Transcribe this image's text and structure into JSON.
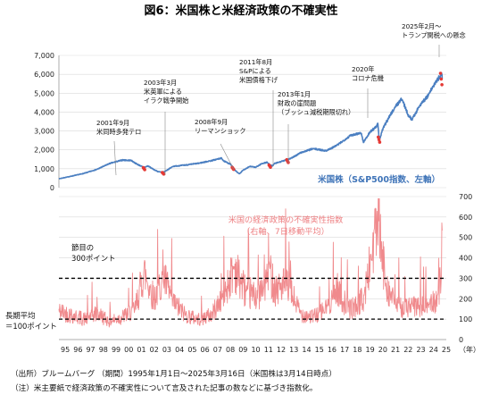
{
  "title": "図6：米国株と米経済政策の不確実性",
  "chart_data": [
    {
      "type": "line",
      "series": [
        {
          "name": "米国株（S&P500指数、左軸）",
          "color": "#4b7fc1",
          "x": [
            1995.0,
            1996.0,
            1997.0,
            1998.0,
            1999.0,
            2000.0,
            2000.7,
            2001.0,
            2001.7,
            2002.0,
            2002.5,
            2002.8,
            2003.2,
            2004.0,
            2005.0,
            2006.0,
            2007.0,
            2007.8,
            2008.0,
            2008.5,
            2008.9,
            2009.2,
            2009.5,
            2010.0,
            2010.5,
            2011.0,
            2011.4,
            2011.6,
            2011.8,
            2012.0,
            2012.5,
            2013.0,
            2013.5,
            2014.0,
            2015.0,
            2015.6,
            2016.0,
            2016.5,
            2017.0,
            2018.0,
            2018.8,
            2018.97,
            2019.5,
            2020.0,
            2020.12,
            2020.22,
            2020.5,
            2021.0,
            2021.5,
            2022.0,
            2022.5,
            2022.8,
            2023.0,
            2023.5,
            2024.0,
            2024.5,
            2025.0,
            2025.13,
            2025.2
          ],
          "y": [
            470,
            610,
            760,
            970,
            1280,
            1460,
            1440,
            1300,
            1060,
            1150,
            950,
            850,
            800,
            1130,
            1200,
            1290,
            1430,
            1560,
            1400,
            1250,
            900,
            730,
            920,
            1120,
            1080,
            1280,
            1340,
            1200,
            1150,
            1280,
            1380,
            1480,
            1630,
            1840,
            2060,
            2000,
            1950,
            2100,
            2290,
            2780,
            2900,
            2400,
            2950,
            3240,
            3380,
            2500,
            3100,
            3750,
            4300,
            4700,
            3850,
            3600,
            3850,
            4450,
            4800,
            5400,
            5900,
            6100,
            5700
          ]
        }
      ],
      "xlim": [
        1995,
        2025.5
      ],
      "ylim": [
        0,
        7000
      ],
      "y_ticks": [
        "0",
        "1,000",
        "2,000",
        "3,000",
        "4,000",
        "5,000",
        "6,000",
        "7,000"
      ],
      "highlight_points": [
        2001.7,
        2003.2,
        2008.7,
        2011.6,
        2013.0,
        2020.2,
        2025.1
      ],
      "annotations": [
        {
          "text": [
            "2001年9月",
            "米同時多発テロ"
          ]
        },
        {
          "text": [
            "2003年3月",
            "米英軍による",
            "イラク戦争開始"
          ]
        },
        {
          "text": [
            "2008年9月",
            "リーマンショック"
          ]
        },
        {
          "text": [
            "2011年8月",
            "S&Pによる",
            "米国債格下げ"
          ]
        },
        {
          "text": [
            "2013年1月",
            "財政の崖問題",
            "（ブッシュ減税期限切れ）"
          ]
        },
        {
          "text": [
            "2020年",
            "コロナ危機"
          ]
        },
        {
          "text": [
            "2025年2月～",
            "トランプ関税への懸念"
          ]
        }
      ]
    },
    {
      "type": "line",
      "series": [
        {
          "name": "米国の経済政策の不確実性指数（右軸、7日移動平均）",
          "color": "#f08a8d",
          "x": [
            1995.0,
            1996.0,
            1997.0,
            1998.0,
            1999.0,
            2000.0,
            2001.0,
            2001.7,
            2002.5,
            2003.2,
            2004.0,
            2005.0,
            2006.0,
            2007.0,
            2008.0,
            2008.8,
            2009.5,
            2010.0,
            2011.0,
            2011.6,
            2012.0,
            2012.9,
            2013.5,
            2014.0,
            2015.0,
            2016.0,
            2016.9,
            2017.5,
            2018.0,
            2019.0,
            2020.2,
            2020.4,
            2021.0,
            2021.5,
            2022.0,
            2023.0,
            2024.0,
            2024.8,
            2025.1,
            2025.2
          ],
          "y": [
            140,
            120,
            100,
            130,
            90,
            110,
            150,
            330,
            200,
            310,
            180,
            120,
            100,
            120,
            220,
            360,
            260,
            210,
            230,
            340,
            250,
            270,
            200,
            130,
            110,
            150,
            250,
            180,
            150,
            200,
            620,
            400,
            230,
            180,
            160,
            160,
            170,
            200,
            340,
            600
          ]
        }
      ],
      "xlim": [
        1995,
        2025.5
      ],
      "ylim": [
        0,
        700
      ],
      "y_ticks": [
        "0",
        "100",
        "200",
        "300",
        "400",
        "500",
        "600",
        "700"
      ],
      "reference_lines": [
        {
          "y": 300,
          "label": [
            "節目の",
            "300ポイント"
          ]
        },
        {
          "y": 100,
          "label": [
            "長期平均",
            "＝100ポイント"
          ]
        }
      ],
      "x_ticks": [
        "95",
        "96",
        "97",
        "98",
        "99",
        "00",
        "01",
        "02",
        "03",
        "04",
        "05",
        "06",
        "07",
        "08",
        "09",
        "10",
        "11",
        "12",
        "13",
        "14",
        "15",
        "16",
        "17",
        "18",
        "19",
        "20",
        "21",
        "22",
        "23",
        "24",
        "25"
      ],
      "x_unit": "（年）"
    }
  ],
  "notes": [
    "（出所）ブルームバーグ （期間）1995年1月1日～2025年3月16日（米国株は3月14日時点）",
    "（注）米主要紙で経済政策の不確実性について言及された記事の数などに基づき指数化。"
  ]
}
